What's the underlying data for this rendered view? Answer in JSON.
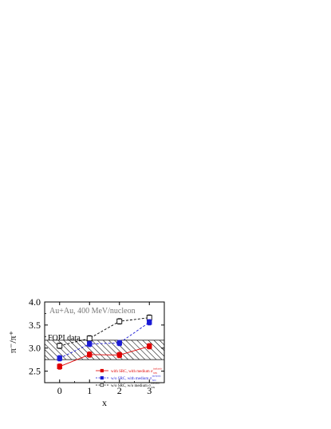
{
  "chart_data": {
    "type": "scatter",
    "x": [
      0,
      1,
      2,
      3
    ],
    "xlabel": "x",
    "ylabel": "π⁻/π⁺",
    "xlim": [
      -0.5,
      3.5
    ],
    "ylim": [
      2.25,
      4.0
    ],
    "xticks": [
      "0",
      "1",
      "2",
      "3"
    ],
    "yticks": [
      "2.5",
      "3.0",
      "3.5",
      "4.0"
    ],
    "yticks_values": [
      2.5,
      3.0,
      3.5,
      4.0
    ],
    "annotations": {
      "system": "Au+Au, 400 MeV/nucleon",
      "band": "FOPI data"
    },
    "band": {
      "ymin": 2.75,
      "ymax": 3.17,
      "style": "hatched"
    },
    "series": [
      {
        "name": "w/o SRC, w/o medium σ",
        "sup": "inelastic",
        "sub": "NN",
        "color": "#000000",
        "marker": "open-square",
        "line": "dashed",
        "values": [
          3.05,
          3.21,
          3.58,
          3.66
        ],
        "errors": [
          0.06,
          0.06,
          0.06,
          0.06
        ]
      },
      {
        "name": "w/o SRC, with medium σ",
        "sup": "inelastic",
        "sub": "NN",
        "color": "#1a1ad6",
        "marker": "filled-square",
        "line": "dashed",
        "values": [
          2.78,
          3.09,
          3.11,
          3.56
        ],
        "errors": [
          0.06,
          0.06,
          0.06,
          0.06
        ]
      },
      {
        "name": "with SRC, with medium σ",
        "sup": "inelastic",
        "sub": "NN",
        "color": "#e00000",
        "marker": "filled-square",
        "line": "solid",
        "values": [
          2.6,
          2.86,
          2.85,
          3.04
        ],
        "errors": [
          0.06,
          0.06,
          0.06,
          0.06
        ]
      }
    ]
  }
}
